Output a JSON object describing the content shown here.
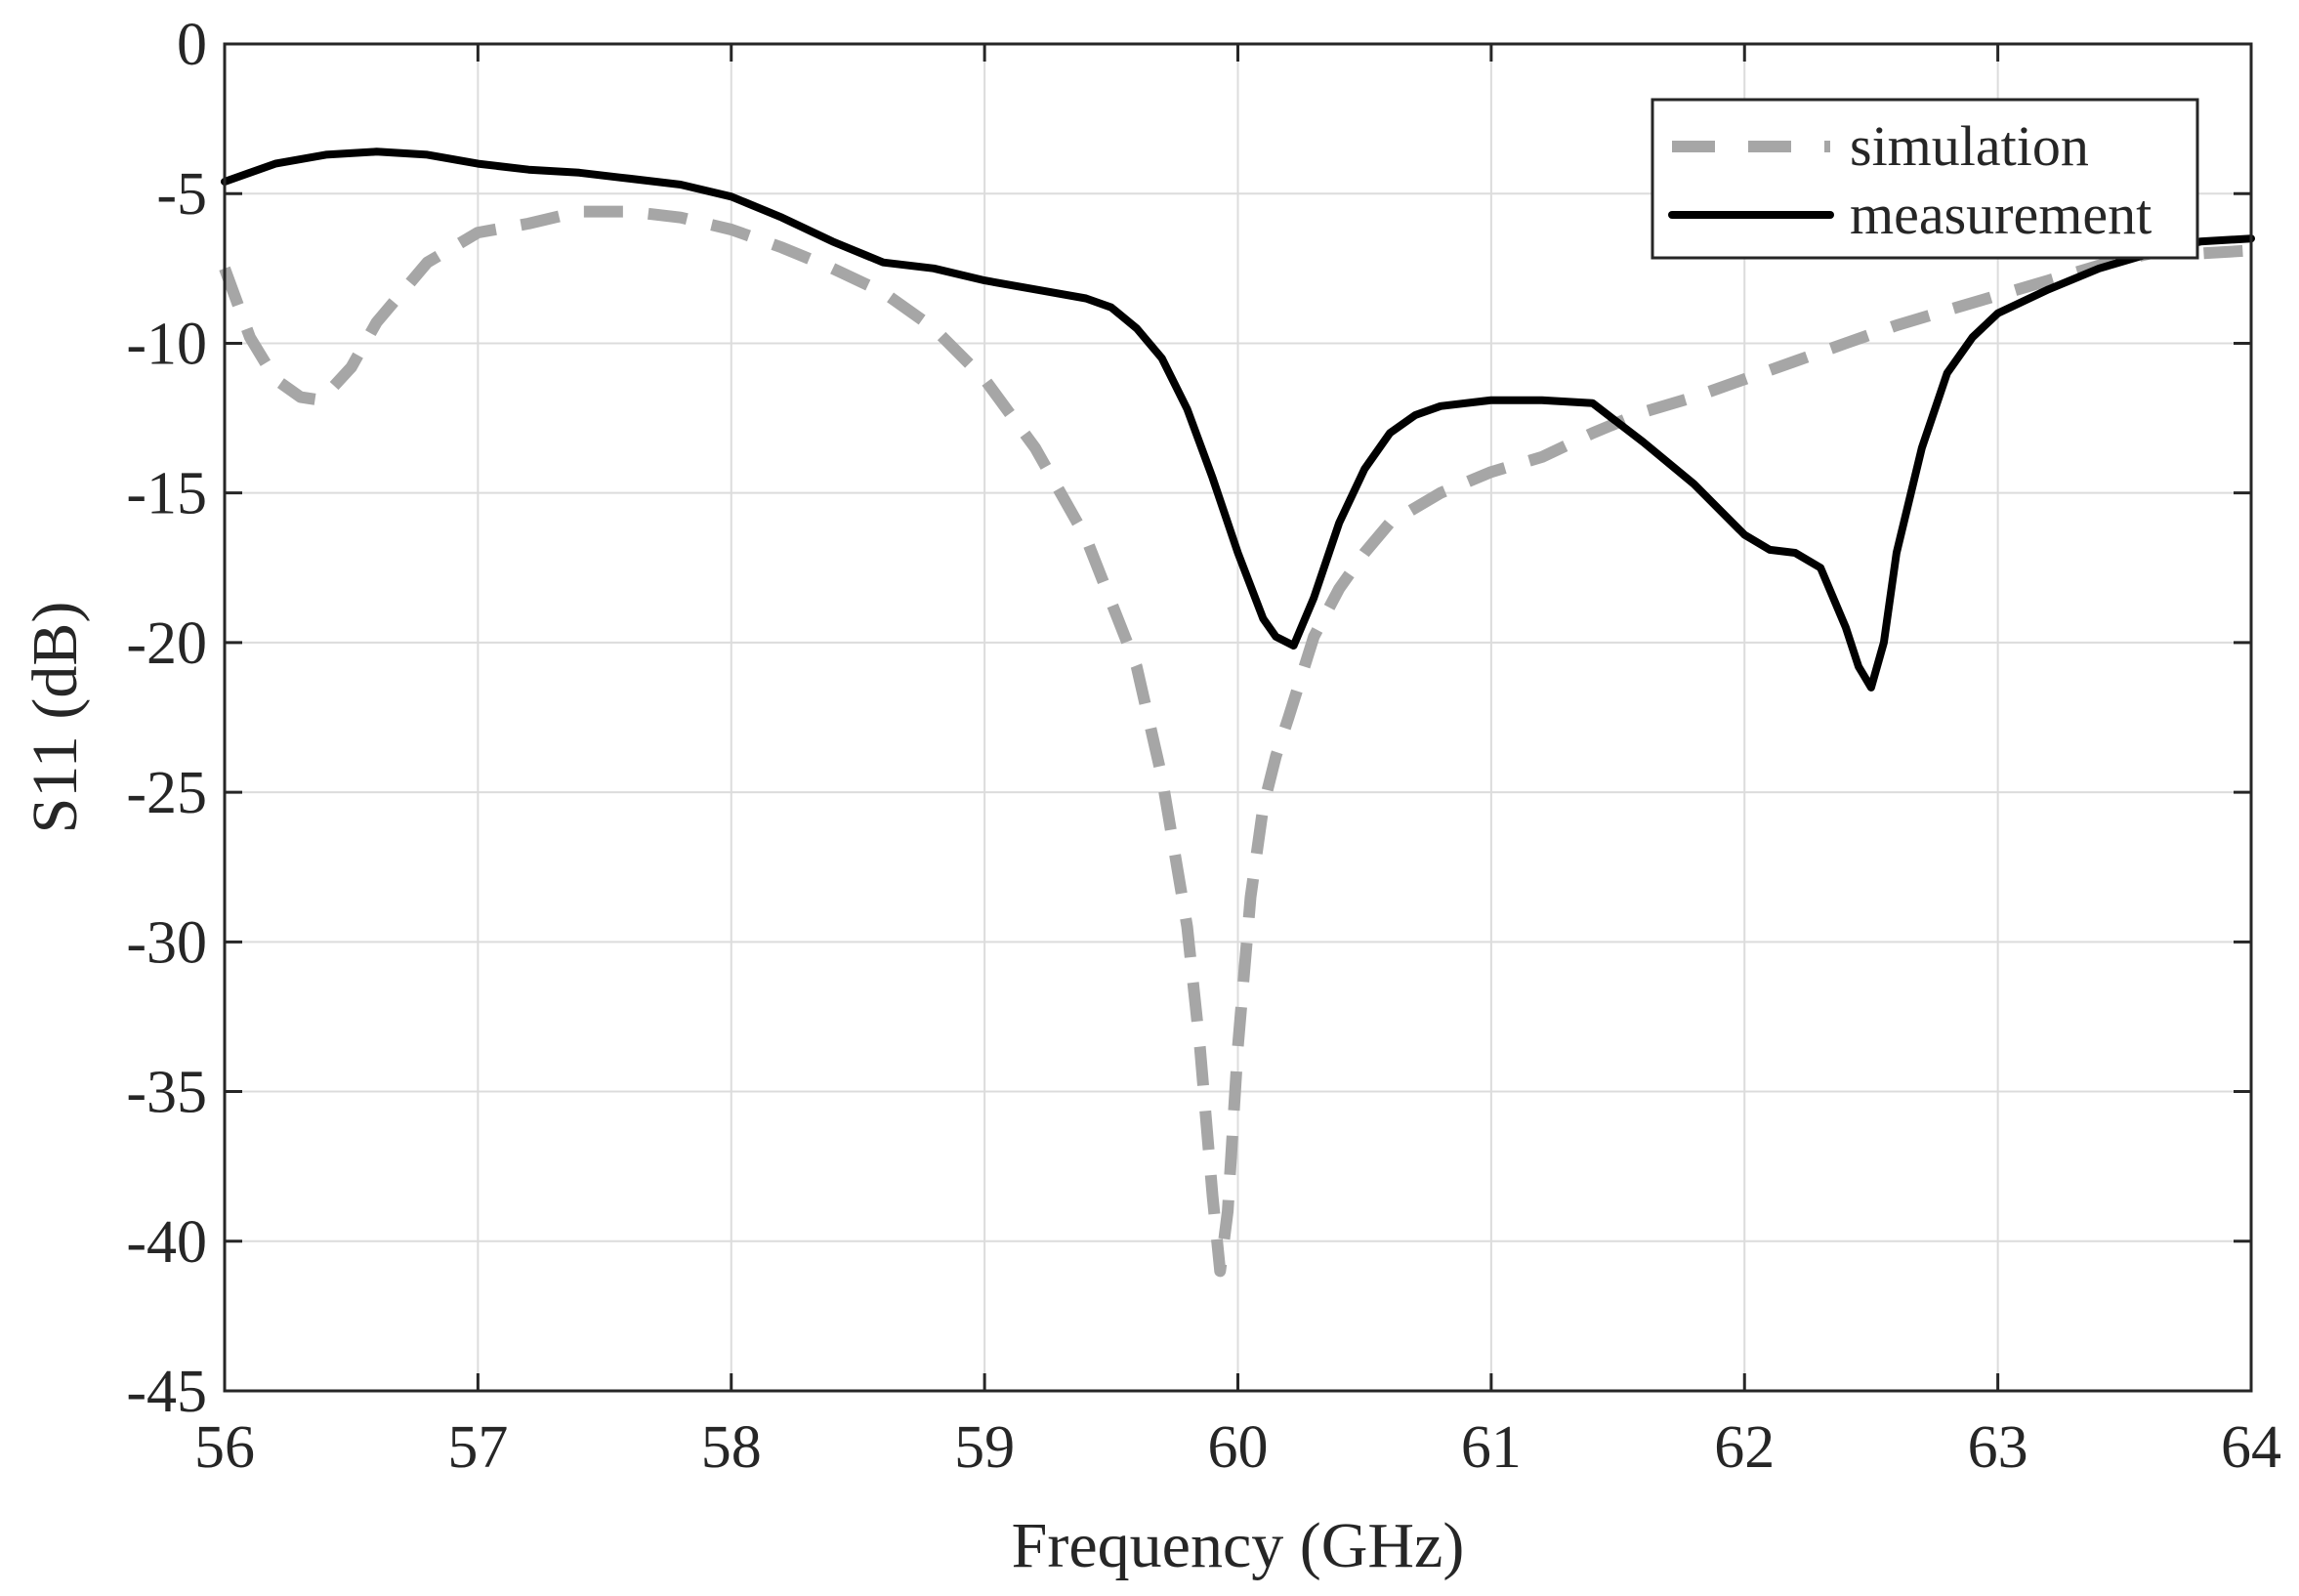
{
  "chart_data": {
    "type": "line",
    "title": "",
    "xlabel": "Frequency (GHz)",
    "ylabel": "S11 (dB)",
    "xlim": [
      56,
      64
    ],
    "ylim": [
      -45,
      0
    ],
    "xticks": [
      56,
      57,
      58,
      59,
      60,
      61,
      62,
      63,
      64
    ],
    "yticks": [
      0,
      -5,
      -10,
      -15,
      -20,
      -25,
      -30,
      -35,
      -40,
      -45
    ],
    "xtick_labels": [
      "56",
      "57",
      "58",
      "59",
      "60",
      "61",
      "62",
      "63",
      "64"
    ],
    "ytick_labels": [
      "0",
      "-5",
      "-10",
      "-15",
      "-20",
      "-25",
      "-30",
      "-35",
      "-40",
      "-45"
    ],
    "grid": true,
    "legend_position": "top-right",
    "series": [
      {
        "name": "simulation",
        "style": "dashed",
        "color": "#a6a6a6",
        "x": [
          56.0,
          56.1,
          56.2,
          56.3,
          56.38,
          56.5,
          56.6,
          56.8,
          57.0,
          57.2,
          57.4,
          57.6,
          57.8,
          58.0,
          58.2,
          58.4,
          58.6,
          58.8,
          59.0,
          59.2,
          59.4,
          59.6,
          59.7,
          59.8,
          59.85,
          59.9,
          59.93,
          59.96,
          60.0,
          60.05,
          60.1,
          60.15,
          60.2,
          60.3,
          60.4,
          60.5,
          60.6,
          60.8,
          61.0,
          61.2,
          61.4,
          61.6,
          61.8,
          62.0,
          62.2,
          62.4,
          62.6,
          62.8,
          63.0,
          63.2,
          63.4,
          63.6,
          63.8,
          64.0
        ],
        "y": [
          -7.5,
          -9.8,
          -11.2,
          -11.8,
          -11.9,
          -10.8,
          -9.3,
          -7.3,
          -6.3,
          -6.0,
          -5.6,
          -5.6,
          -5.8,
          -6.2,
          -6.8,
          -7.5,
          -8.3,
          -9.5,
          -11.2,
          -13.5,
          -16.5,
          -20.8,
          -24.5,
          -29.5,
          -33.5,
          -38.5,
          -41.0,
          -39.0,
          -33.5,
          -28.5,
          -25.5,
          -23.8,
          -22.5,
          -19.8,
          -18.2,
          -17.0,
          -16.0,
          -15.0,
          -14.3,
          -13.8,
          -13.0,
          -12.3,
          -11.8,
          -11.2,
          -10.6,
          -10.0,
          -9.4,
          -8.9,
          -8.4,
          -7.9,
          -7.4,
          -7.0,
          -7.0,
          -6.9
        ]
      },
      {
        "name": "measurement",
        "style": "solid",
        "color": "#000000",
        "x": [
          56.0,
          56.2,
          56.4,
          56.6,
          56.8,
          57.0,
          57.2,
          57.4,
          57.6,
          57.8,
          58.0,
          58.2,
          58.4,
          58.6,
          58.8,
          59.0,
          59.2,
          59.4,
          59.5,
          59.6,
          59.7,
          59.8,
          59.9,
          60.0,
          60.1,
          60.15,
          60.22,
          60.3,
          60.4,
          60.5,
          60.6,
          60.7,
          60.8,
          61.0,
          61.2,
          61.4,
          61.6,
          61.8,
          62.0,
          62.1,
          62.2,
          62.3,
          62.4,
          62.45,
          62.5,
          62.55,
          62.6,
          62.7,
          62.8,
          62.9,
          63.0,
          63.2,
          63.4,
          63.6,
          63.8,
          64.0
        ],
        "y": [
          -4.6,
          -4.0,
          -3.7,
          -3.6,
          -3.7,
          -4.0,
          -4.2,
          -4.3,
          -4.5,
          -4.7,
          -5.1,
          -5.8,
          -6.6,
          -7.3,
          -7.5,
          -7.9,
          -8.2,
          -8.5,
          -8.8,
          -9.5,
          -10.5,
          -12.2,
          -14.5,
          -17.0,
          -19.2,
          -19.8,
          -20.1,
          -18.5,
          -16.0,
          -14.2,
          -13.0,
          -12.4,
          -12.1,
          -11.9,
          -11.9,
          -12.0,
          -13.3,
          -14.7,
          -16.4,
          -16.9,
          -17.0,
          -17.5,
          -19.5,
          -20.8,
          -21.5,
          -20.0,
          -17.0,
          -13.5,
          -11.0,
          -9.8,
          -9.0,
          -8.2,
          -7.5,
          -7.0,
          -6.6,
          -6.5
        ]
      }
    ]
  }
}
